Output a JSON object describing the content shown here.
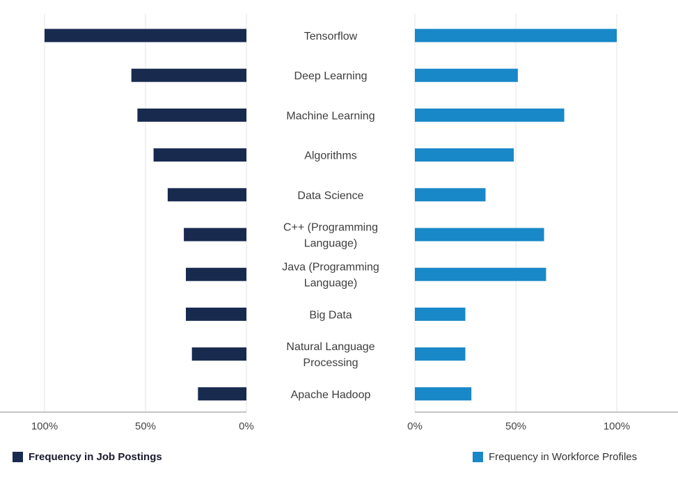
{
  "chart_data": {
    "type": "bar",
    "orientation": "horizontal-butterfly",
    "categories": [
      "Tensorflow",
      "Deep Learning",
      "Machine Learning",
      "Algorithms",
      "Data Science",
      "C++ (Programming Language)",
      "Java (Programming Language)",
      "Big Data",
      "Natural Language Processing",
      "Apache Hadoop"
    ],
    "category_lines": [
      [
        "Tensorflow"
      ],
      [
        "Deep Learning"
      ],
      [
        "Machine Learning"
      ],
      [
        "Algorithms"
      ],
      [
        "Data Science"
      ],
      [
        "C++ (Programming",
        "Language)"
      ],
      [
        "Java (Programming",
        "Language)"
      ],
      [
        "Big Data"
      ],
      [
        "Natural Language",
        "Processing"
      ],
      [
        "Apache Hadoop"
      ]
    ],
    "series": [
      {
        "name": "Frequency in Job Postings",
        "color": "#192a4f",
        "values": [
          100,
          57,
          54,
          46,
          39,
          31,
          30,
          30,
          27,
          24
        ]
      },
      {
        "name": "Frequency in Workforce Profiles",
        "color": "#1888c9",
        "values": [
          100,
          51,
          74,
          49,
          35,
          64,
          65,
          25,
          25,
          28
        ]
      }
    ],
    "left_axis": {
      "ticks": [
        "100%",
        "50%",
        "0%"
      ],
      "range": [
        100,
        0
      ]
    },
    "right_axis": {
      "ticks": [
        "0%",
        "50%",
        "100%"
      ],
      "range": [
        0,
        100
      ]
    },
    "grid": "vertical",
    "legend_position": "bottom"
  }
}
